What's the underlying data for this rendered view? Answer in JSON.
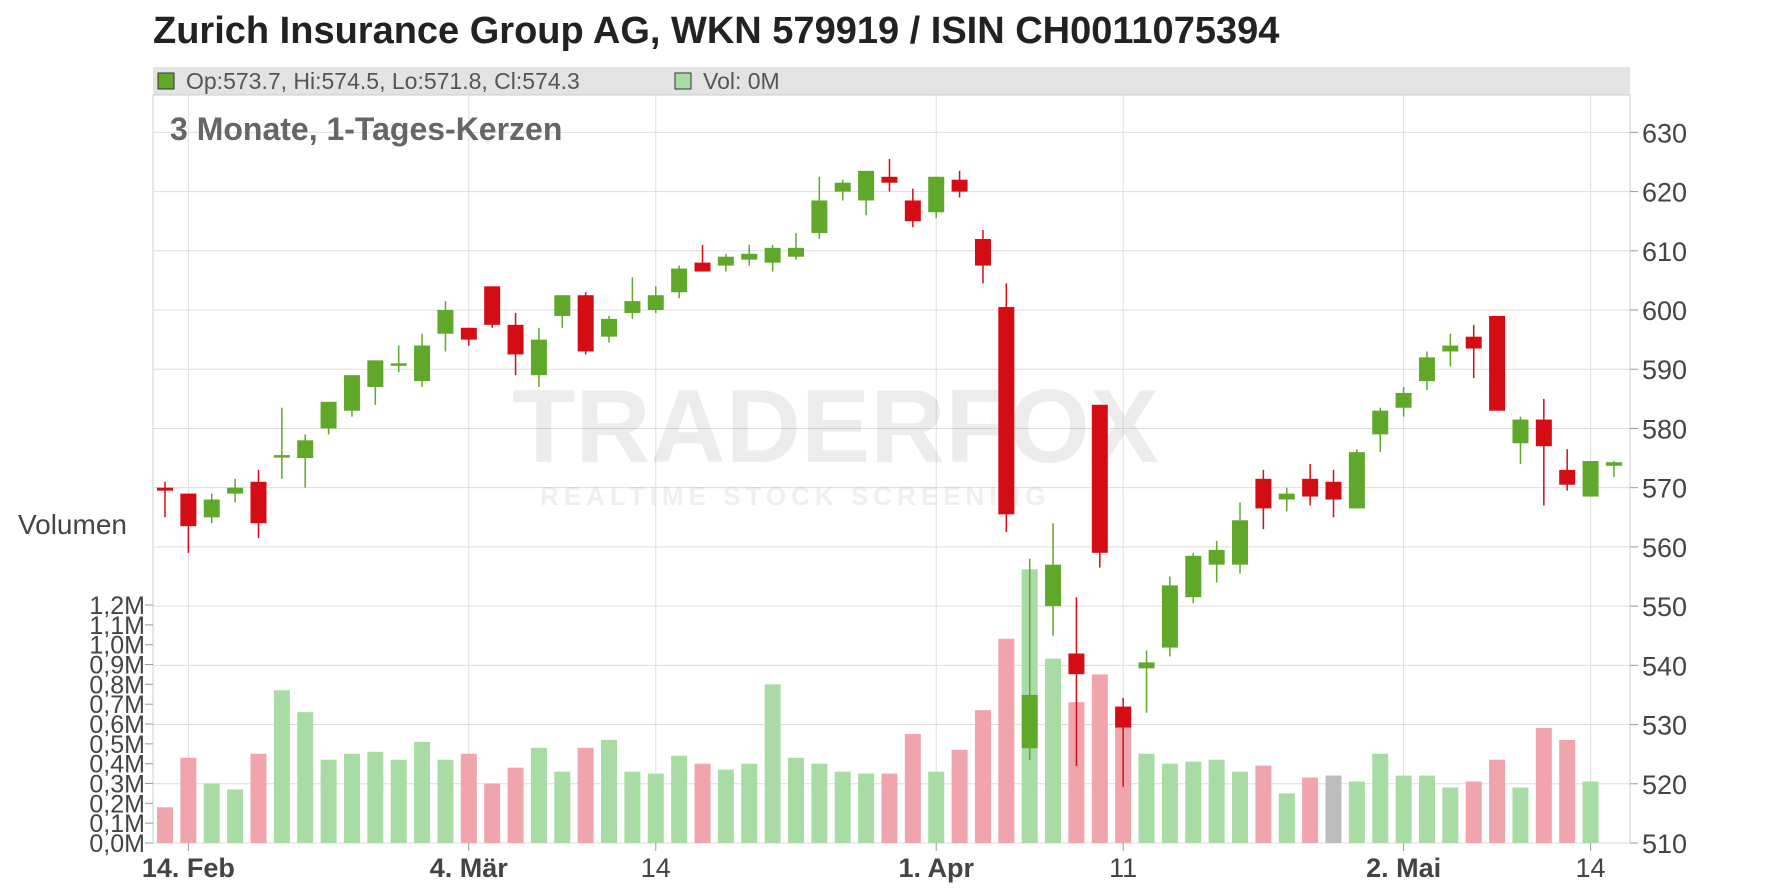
{
  "title": "Zurich Insurance Group AG, WKN 579919 / ISIN CH0011075394",
  "legend": {
    "ohlc": "Op:573.7, Hi:574.5, Lo:571.8, Cl:574.3",
    "vol": "Vol: 0M"
  },
  "subtitle": "3 Monate, 1-Tages-Kerzen",
  "volume_label": "Volumen",
  "watermark": {
    "brand": "TRADERFOX",
    "tagline": "REALTIME STOCK SCREENING"
  },
  "colors": {
    "up": "#5fa829",
    "down": "#d40c14",
    "vol_up": "#a8dca4",
    "vol_down": "#f0a4ac",
    "vol_flat": "#bdbdbd",
    "legend_bar": "#e3e3e3",
    "grid": "#dedede"
  },
  "chart_data": {
    "type": "candlestick",
    "y_axis": {
      "ticks": [
        510,
        520,
        530,
        540,
        550,
        560,
        570,
        580,
        590,
        600,
        610,
        620,
        630
      ],
      "range": [
        510,
        631
      ]
    },
    "volume_axis": {
      "ticks": [
        "0,0M",
        "0,1M",
        "0,2M",
        "0,3M",
        "0,4M",
        "0,5M",
        "0,6M",
        "0,7M",
        "0,8M",
        "0,9M",
        "1,0M",
        "1,1M",
        "1,2M"
      ],
      "range_millions": [
        0,
        1.2
      ]
    },
    "x_ticks": [
      {
        "label": "14. Feb",
        "index": 1,
        "bold": true
      },
      {
        "label": "4. Mär",
        "index": 13,
        "bold": true
      },
      {
        "label": "14",
        "index": 21,
        "bold": false
      },
      {
        "label": "1. Apr",
        "index": 33,
        "bold": true
      },
      {
        "label": "11",
        "index": 41,
        "bold": false
      },
      {
        "label": "2. Mai",
        "index": 53,
        "bold": true
      },
      {
        "label": "14",
        "index": 61,
        "bold": false
      }
    ],
    "candles": [
      {
        "o": 570,
        "h": 571,
        "l": 565,
        "c": 569.5,
        "v": 0.18
      },
      {
        "o": 569,
        "h": 569,
        "l": 559,
        "c": 563.5,
        "v": 0.43
      },
      {
        "o": 565,
        "h": 569,
        "l": 564,
        "c": 568,
        "v": 0.3
      },
      {
        "o": 569,
        "h": 571.5,
        "l": 567.5,
        "c": 570,
        "v": 0.27
      },
      {
        "o": 571,
        "h": 573,
        "l": 561.5,
        "c": 564,
        "v": 0.45
      },
      {
        "o": 575.5,
        "h": 583.5,
        "l": 571.5,
        "c": 575.5,
        "v": 0.77
      },
      {
        "o": 575,
        "h": 579,
        "l": 570,
        "c": 578,
        "v": 0.66
      },
      {
        "o": 580,
        "h": 584.5,
        "l": 579,
        "c": 584.5,
        "v": 0.42
      },
      {
        "o": 583,
        "h": 589,
        "l": 582,
        "c": 589,
        "v": 0.45
      },
      {
        "o": 587,
        "h": 591.5,
        "l": 584,
        "c": 591.5,
        "v": 0.46
      },
      {
        "o": 591,
        "h": 594,
        "l": 589.5,
        "c": 591,
        "v": 0.42
      },
      {
        "o": 588,
        "h": 596,
        "l": 587,
        "c": 594,
        "v": 0.51
      },
      {
        "o": 596,
        "h": 601.5,
        "l": 593,
        "c": 600,
        "v": 0.42
      },
      {
        "o": 597,
        "h": 597,
        "l": 594,
        "c": 595,
        "v": 0.45
      },
      {
        "o": 604,
        "h": 604,
        "l": 597,
        "c": 597.5,
        "v": 0.3
      },
      {
        "o": 597.5,
        "h": 599.5,
        "l": 589,
        "c": 592.5,
        "v": 0.38
      },
      {
        "o": 589,
        "h": 597,
        "l": 587,
        "c": 595,
        "v": 0.48
      },
      {
        "o": 599,
        "h": 602.5,
        "l": 597,
        "c": 602.5,
        "v": 0.36
      },
      {
        "o": 602.5,
        "h": 603,
        "l": 592.5,
        "c": 593,
        "v": 0.48
      },
      {
        "o": 595.5,
        "h": 599,
        "l": 594.5,
        "c": 598.5,
        "v": 0.52
      },
      {
        "o": 599.5,
        "h": 605.5,
        "l": 598.5,
        "c": 601.5,
        "v": 0.36
      },
      {
        "o": 600,
        "h": 604,
        "l": 599.5,
        "c": 602.5,
        "v": 0.35
      },
      {
        "o": 603,
        "h": 607.5,
        "l": 602,
        "c": 607,
        "v": 0.44
      },
      {
        "o": 608,
        "h": 611,
        "l": 606.5,
        "c": 606.5,
        "v": 0.4
      },
      {
        "o": 607.5,
        "h": 609.5,
        "l": 606.5,
        "c": 609,
        "v": 0.37
      },
      {
        "o": 608.5,
        "h": 611,
        "l": 607.5,
        "c": 609.5,
        "v": 0.4
      },
      {
        "o": 608,
        "h": 611,
        "l": 606.5,
        "c": 610.5,
        "v": 0.8
      },
      {
        "o": 609,
        "h": 613,
        "l": 608.5,
        "c": 610.5,
        "v": 0.43
      },
      {
        "o": 613,
        "h": 622.5,
        "l": 612,
        "c": 618.5,
        "v": 0.4
      },
      {
        "o": 620,
        "h": 622,
        "l": 618.5,
        "c": 621.5,
        "v": 0.36
      },
      {
        "o": 618.5,
        "h": 623.5,
        "l": 616,
        "c": 623.5,
        "v": 0.35
      },
      {
        "o": 622.5,
        "h": 625.5,
        "l": 620,
        "c": 621.5,
        "v": 0.35
      },
      {
        "o": 618.5,
        "h": 620.5,
        "l": 614,
        "c": 615,
        "v": 0.55
      },
      {
        "o": 616.5,
        "h": 622.5,
        "l": 615.5,
        "c": 622.5,
        "v": 0.36
      },
      {
        "o": 622,
        "h": 623.5,
        "l": 619,
        "c": 620,
        "v": 0.47
      },
      {
        "o": 612,
        "h": 613.5,
        "l": 604.5,
        "c": 607.5,
        "v": 0.67
      },
      {
        "o": 600.5,
        "h": 604.5,
        "l": 562.5,
        "c": 565.5,
        "v": 1.03
      },
      {
        "o": 526,
        "h": 558,
        "l": 524,
        "c": 535,
        "v": 1.38
      },
      {
        "o": 550,
        "h": 564,
        "l": 545,
        "c": 557,
        "v": 0.93
      },
      {
        "o": 542,
        "h": 551.5,
        "l": 523,
        "c": 538.5,
        "v": 0.71
      },
      {
        "o": 584,
        "h": 584,
        "l": 556.5,
        "c": 559,
        "v": 0.85
      },
      {
        "o": 533,
        "h": 534.5,
        "l": 519.5,
        "c": 529.5,
        "v": 0.69
      },
      {
        "o": 539.5,
        "h": 542.5,
        "l": 532,
        "c": 540.5,
        "v": 0.45
      },
      {
        "o": 543,
        "h": 555,
        "l": 541.5,
        "c": 553.5,
        "v": 0.4
      },
      {
        "o": 551.5,
        "h": 559,
        "l": 550.5,
        "c": 558.5,
        "v": 0.41
      },
      {
        "o": 557,
        "h": 561,
        "l": 554,
        "c": 559.5,
        "v": 0.42
      },
      {
        "o": 557,
        "h": 567.5,
        "l": 555.5,
        "c": 564.5,
        "v": 0.36
      },
      {
        "o": 571.5,
        "h": 573,
        "l": 563,
        "c": 566.5,
        "v": 0.39
      },
      {
        "o": 568,
        "h": 570,
        "l": 566,
        "c": 569,
        "v": 0.25
      },
      {
        "o": 571.5,
        "h": 574,
        "l": 567,
        "c": 568.5,
        "v": 0.33
      },
      {
        "o": 571,
        "h": 573,
        "l": 565,
        "c": 568,
        "v": 0.34
      },
      {
        "o": 566.5,
        "h": 576.5,
        "l": 566.5,
        "c": 576,
        "v": 0.31
      },
      {
        "o": 579,
        "h": 583.5,
        "l": 576,
        "c": 583,
        "v": 0.45
      },
      {
        "o": 583.5,
        "h": 587,
        "l": 582,
        "c": 586,
        "v": 0.34
      },
      {
        "o": 588,
        "h": 593,
        "l": 586.5,
        "c": 592,
        "v": 0.34
      },
      {
        "o": 593,
        "h": 596,
        "l": 590.5,
        "c": 594,
        "v": 0.28
      },
      {
        "o": 595.5,
        "h": 597.5,
        "l": 588.5,
        "c": 593.5,
        "v": 0.31
      },
      {
        "o": 599,
        "h": 599,
        "l": 583,
        "c": 583,
        "v": 0.42
      },
      {
        "o": 577.5,
        "h": 582,
        "l": 574,
        "c": 581.5,
        "v": 0.28
      },
      {
        "o": 581.5,
        "h": 585,
        "l": 567,
        "c": 577,
        "v": 0.58
      },
      {
        "o": 573,
        "h": 576.5,
        "l": 569.5,
        "c": 570.5,
        "v": 0.52
      },
      {
        "o": 568.5,
        "h": 574.5,
        "l": 568.5,
        "c": 574.5,
        "v": 0.31
      },
      {
        "o": 573.7,
        "h": 574.5,
        "l": 571.8,
        "c": 574.3,
        "v": 0
      }
    ],
    "volume_colors_note": "volume bar color follows candle direction; index 50 shown grey"
  }
}
